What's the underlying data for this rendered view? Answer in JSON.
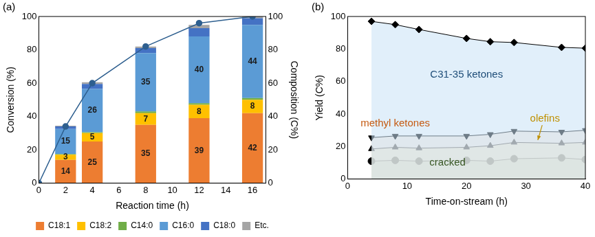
{
  "chart_data": [
    {
      "type": "bar",
      "title": "(a)",
      "x_label": "Reaction time (h)",
      "y_label": "Conversion (%)",
      "y2_label": "Composition (C%)",
      "xlim": [
        0,
        17
      ],
      "xticks": [
        0,
        2,
        4,
        6,
        8,
        10,
        12,
        14,
        16
      ],
      "ylim": [
        0,
        100
      ],
      "yticks": [
        0,
        20,
        40,
        60,
        80,
        100
      ],
      "y2lim": [
        0,
        100
      ],
      "y2ticks": [
        0,
        20,
        40,
        60,
        80,
        100
      ],
      "stacked": true,
      "grid": false,
      "legend": "bottom",
      "series": [
        {
          "name": "C18:1",
          "color": "#ed7d31",
          "axis": "y2",
          "data_labels": true,
          "x": [
            2,
            4,
            8,
            12,
            16
          ],
          "values": [
            14,
            25,
            35,
            39,
            42
          ]
        },
        {
          "name": "C18:2",
          "color": "#ffc000",
          "axis": "y2",
          "data_labels": true,
          "x": [
            2,
            4,
            8,
            12,
            16
          ],
          "values": [
            3,
            5,
            7,
            8,
            8
          ]
        },
        {
          "name": "C14:0",
          "color": "#70ad47",
          "axis": "y2",
          "x": [
            2,
            4,
            8,
            12,
            16
          ],
          "values": [
            0.5,
            0.5,
            1,
            1,
            1
          ]
        },
        {
          "name": "C16:0",
          "color": "#5b9bd5",
          "axis": "y2",
          "data_labels": true,
          "x": [
            2,
            4,
            8,
            12,
            16
          ],
          "values": [
            15,
            26,
            35,
            40,
            44
          ]
        },
        {
          "name": "C18:0",
          "color": "#4472c4",
          "axis": "y2",
          "x": [
            2,
            4,
            8,
            12,
            16
          ],
          "values": [
            1.5,
            3,
            3,
            5,
            4
          ]
        },
        {
          "name": "Etc.",
          "color": "#a5a5a5",
          "axis": "y2",
          "x": [
            2,
            4,
            8,
            12,
            16
          ],
          "values": [
            0.5,
            1,
            1,
            2,
            1
          ]
        },
        {
          "name": null,
          "type": "line",
          "color": "#2e5f8f",
          "marker": "circle",
          "x": [
            0,
            2,
            4,
            8,
            12,
            16
          ],
          "values": [
            0,
            34,
            60,
            82,
            96,
            100
          ]
        }
      ]
    },
    {
      "type": "line",
      "title": "(b)",
      "x_label": "Time-on-stream (h)",
      "y_label": "Yield (C%)",
      "xlim": [
        0,
        40
      ],
      "xticks": [
        0,
        10,
        20,
        30,
        40
      ],
      "ylim": [
        0,
        100
      ],
      "yticks": [
        0,
        20,
        40,
        60,
        80,
        100
      ],
      "grid": false,
      "x": [
        4,
        8,
        12,
        20,
        24,
        28,
        36,
        40
      ],
      "series": [
        {
          "name": "C31-35 ketones",
          "color": "#000000",
          "marker": "diamond",
          "values": [
            97,
            95,
            92,
            86.5,
            84.5,
            84,
            81,
            80.5
          ]
        },
        {
          "name": "methyl ketones",
          "color": "#000000",
          "marker": "triangle-down",
          "values": [
            25.5,
            26.5,
            26.5,
            26.5,
            27.5,
            29.5,
            29,
            30
          ]
        },
        {
          "name": "olefins",
          "color": "#000000",
          "marker": "triangle",
          "values": [
            18.5,
            19.5,
            19,
            19.5,
            20.5,
            22.5,
            22,
            22.5
          ]
        },
        {
          "name": "cracked",
          "color": "#000000",
          "marker": "circle",
          "values": [
            11,
            11.5,
            11,
            11.5,
            11,
            12.5,
            13,
            12
          ]
        }
      ]
    }
  ]
}
